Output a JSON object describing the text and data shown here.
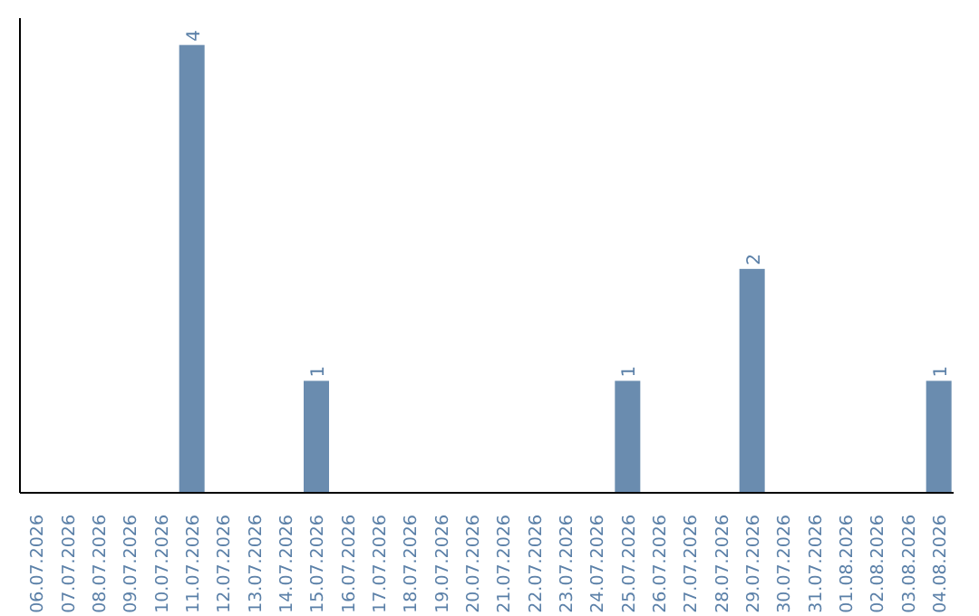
{
  "chart_data": {
    "type": "bar",
    "categories": [
      "06.07.2026",
      "07.07.2026",
      "08.07.2026",
      "09.07.2026",
      "10.07.2026",
      "11.07.2026",
      "12.07.2026",
      "13.07.2026",
      "14.07.2026",
      "15.07.2026",
      "16.07.2026",
      "17.07.2026",
      "18.07.2026",
      "19.07.2026",
      "20.07.2026",
      "21.07.2026",
      "22.07.2026",
      "23.07.2026",
      "24.07.2026",
      "25.07.2026",
      "26.07.2026",
      "27.07.2026",
      "28.07.2026",
      "29.07.2026",
      "30.07.2026",
      "31.07.2026",
      "01.08.2026",
      "02.08.2026",
      "03.08.2026",
      "04.08.2026"
    ],
    "values": [
      0,
      0,
      0,
      0,
      0,
      4,
      0,
      0,
      0,
      1,
      0,
      0,
      0,
      0,
      0,
      0,
      0,
      0,
      0,
      1,
      0,
      0,
      0,
      2,
      0,
      0,
      0,
      0,
      0,
      1
    ],
    "value_labels": [
      null,
      null,
      null,
      null,
      null,
      "4",
      null,
      null,
      null,
      "1",
      null,
      null,
      null,
      null,
      null,
      null,
      null,
      null,
      null,
      "1",
      null,
      null,
      null,
      "2",
      null,
      null,
      null,
      null,
      null,
      "1"
    ],
    "color": "#6a8caf",
    "tick_labels": "x"
  }
}
